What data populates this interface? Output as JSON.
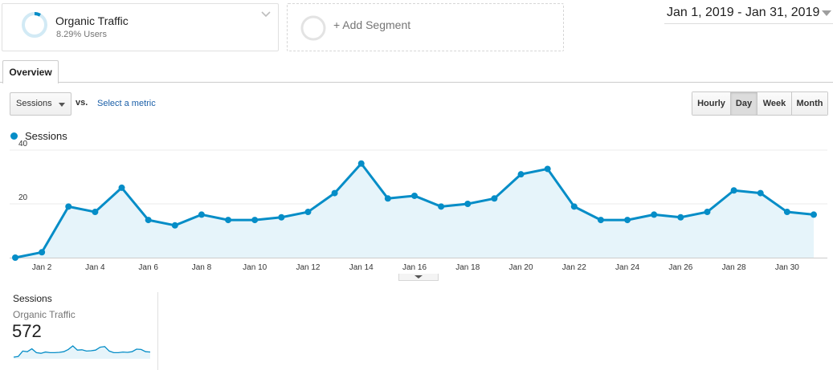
{
  "segment": {
    "name": "Organic Traffic",
    "subtitle": "8.29% Users",
    "percent": 8.29,
    "color": "#058dc7",
    "add_label": "+ Add Segment"
  },
  "date_range": "Jan 1, 2019 - Jan 31, 2019",
  "tabs": [
    {
      "label": "Overview",
      "active": true
    }
  ],
  "metric_selector": {
    "metric": "Sessions",
    "vs_label": "vs.",
    "select_metric": "Select a metric"
  },
  "granularity": [
    {
      "label": "Hourly",
      "selected": false
    },
    {
      "label": "Day",
      "selected": true
    },
    {
      "label": "Week",
      "selected": false
    },
    {
      "label": "Month",
      "selected": false
    }
  ],
  "legend": {
    "label": "Sessions",
    "color": "#058dc7"
  },
  "chart_data": {
    "type": "area",
    "series": [
      {
        "name": "Sessions",
        "x": [
          "Jan 1",
          "Jan 2",
          "Jan 3",
          "Jan 4",
          "Jan 5",
          "Jan 6",
          "Jan 7",
          "Jan 8",
          "Jan 9",
          "Jan 10",
          "Jan 11",
          "Jan 12",
          "Jan 13",
          "Jan 14",
          "Jan 15",
          "Jan 16",
          "Jan 17",
          "Jan 18",
          "Jan 19",
          "Jan 20",
          "Jan 21",
          "Jan 22",
          "Jan 23",
          "Jan 24",
          "Jan 25",
          "Jan 26",
          "Jan 27",
          "Jan 28",
          "Jan 29",
          "Jan 30",
          "Jan 31"
        ],
        "values": [
          0,
          2,
          19,
          17,
          26,
          14,
          12,
          16,
          14,
          14,
          15,
          17,
          24,
          35,
          22,
          23,
          19,
          20,
          22,
          31,
          33,
          19,
          14,
          14,
          16,
          15,
          17,
          25,
          24,
          17,
          16
        ]
      }
    ],
    "x_tick_labels": [
      "Jan 2",
      "Jan 4",
      "Jan 6",
      "Jan 8",
      "Jan 10",
      "Jan 12",
      "Jan 14",
      "Jan 16",
      "Jan 18",
      "Jan 20",
      "Jan 22",
      "Jan 24",
      "Jan 26",
      "Jan 28",
      "Jan 30"
    ],
    "y_ticks": [
      20,
      40
    ],
    "ylim": [
      0,
      40
    ],
    "line_color": "#058dc7",
    "fill_color": "#e6f4fa",
    "grid": true
  },
  "scorecard": {
    "metric": "Sessions",
    "segment": "Organic Traffic",
    "value": "572"
  }
}
